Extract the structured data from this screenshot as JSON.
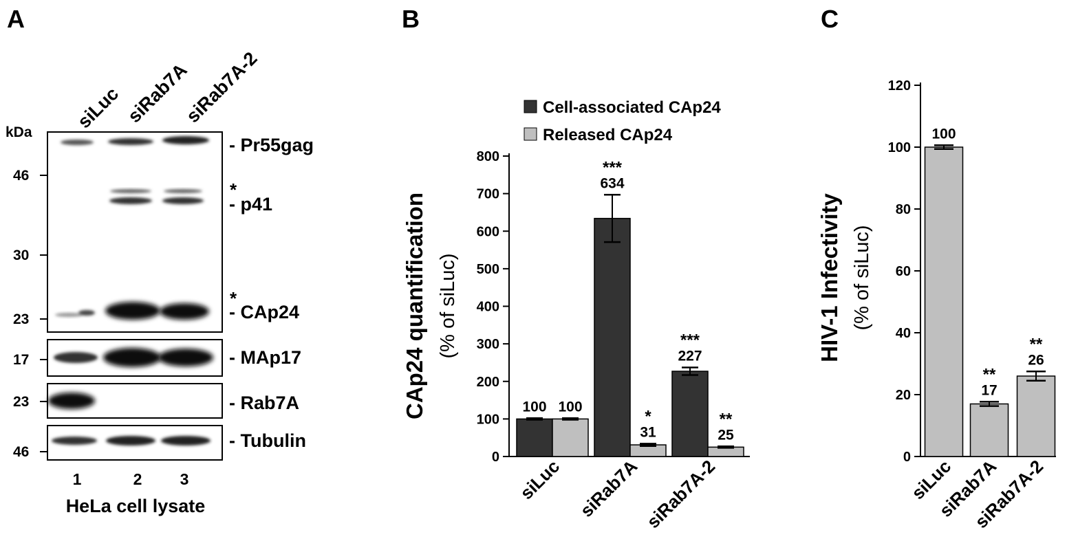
{
  "panel_a": {
    "letter": "A",
    "lanes": [
      "siLuc",
      "siRab7A",
      "siRab7A-2"
    ],
    "kda_label": "kDa",
    "markers": [
      "46",
      "30",
      "23",
      "17",
      "23",
      "46"
    ],
    "band_labels": [
      "- Pr55gag",
      "- p41",
      "- CAp24",
      "- MAp17",
      "- Rab7A",
      "- Tubulin"
    ],
    "asterisk": "*",
    "lane_numbers": [
      "1",
      "2",
      "3"
    ],
    "caption": "HeLa cell lysate"
  },
  "chart_data": [
    {
      "type": "bar",
      "panel": "B",
      "ylabel": "CAp24 quantification",
      "ylabel_sub": "(% of siLuc)",
      "ylim": [
        0,
        800
      ],
      "yticks": [
        "0",
        "100",
        "200",
        "300",
        "400",
        "500",
        "600",
        "700",
        "800"
      ],
      "categories": [
        "siLuc",
        "siRab7A",
        "siRab7A-2"
      ],
      "legend_position": "top",
      "series": [
        {
          "name": "Cell-associated CAp24",
          "color": "#333333",
          "values": [
            100,
            634,
            227
          ],
          "errors": [
            2,
            63,
            10
          ],
          "labels": [
            "100",
            "634",
            "227"
          ],
          "sig": [
            "",
            "***",
            "***"
          ]
        },
        {
          "name": "Released CAp24",
          "color": "#bfbfbf",
          "values": [
            100,
            31,
            25
          ],
          "errors": [
            2,
            3,
            2
          ],
          "labels": [
            "100",
            "31",
            "25"
          ],
          "sig": [
            "",
            "*",
            "**"
          ]
        }
      ]
    },
    {
      "type": "bar",
      "panel": "C",
      "ylabel": "HIV-1 Infectivity",
      "ylabel_sub": "(% of siLuc)",
      "ylim": [
        0,
        120
      ],
      "yticks": [
        "0",
        "20",
        "40",
        "60",
        "80",
        "100",
        "120"
      ],
      "categories": [
        "siLuc",
        "siRab7A",
        "siRab7A-2"
      ],
      "series": [
        {
          "color": "#bfbfbf",
          "values": [
            100,
            17,
            26
          ],
          "errors": [
            0.6,
            0.7,
            1.5
          ],
          "labels": [
            "100",
            "17",
            "26"
          ],
          "sig": [
            "",
            "**",
            "**"
          ]
        }
      ]
    }
  ]
}
